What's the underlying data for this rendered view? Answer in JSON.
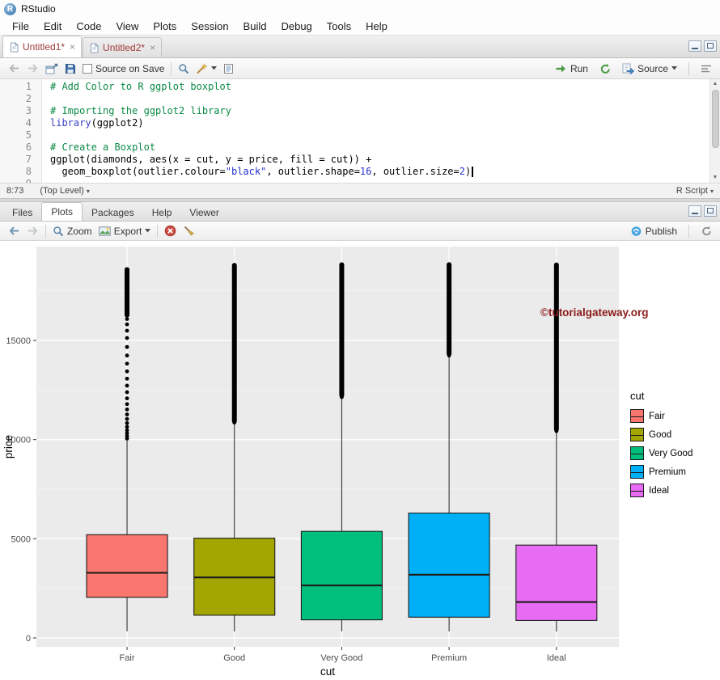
{
  "window": {
    "title": "RStudio",
    "logo_letter": "R"
  },
  "menubar": {
    "items": [
      "File",
      "Edit",
      "Code",
      "View",
      "Plots",
      "Session",
      "Build",
      "Debug",
      "Tools",
      "Help"
    ]
  },
  "source_pane": {
    "tabs": [
      {
        "label": "Untitled1*",
        "close": "×"
      },
      {
        "label": "Untitled2*",
        "close": "×"
      }
    ],
    "toolbar": {
      "source_on_save": "Source on Save",
      "run": "Run",
      "source": "Source"
    },
    "editor": {
      "lines": [
        {
          "n": "1",
          "tokens": [
            {
              "s": "c",
              "t": "# Add Color to R ggplot boxplot"
            }
          ]
        },
        {
          "n": "2",
          "tokens": []
        },
        {
          "n": "3",
          "tokens": [
            {
              "s": "c",
              "t": "# Importing the ggplot2 library"
            }
          ]
        },
        {
          "n": "4",
          "tokens": [
            {
              "s": "k",
              "t": "library"
            },
            {
              "s": "p",
              "t": "(ggplot2)"
            }
          ]
        },
        {
          "n": "5",
          "tokens": []
        },
        {
          "n": "6",
          "tokens": [
            {
              "s": "c",
              "t": "# Create a Boxplot"
            }
          ]
        },
        {
          "n": "7",
          "tokens": [
            {
              "s": "p",
              "t": "ggplot(diamonds, aes(x = cut, y = price, fill = cut)) +"
            }
          ]
        },
        {
          "n": "8",
          "cursor": true,
          "tokens": [
            {
              "s": "p",
              "t": "  geom_boxplot(outlier.colour="
            },
            {
              "s": "s",
              "t": "\"black\""
            },
            {
              "s": "p",
              "t": ", outlier.shape="
            },
            {
              "s": "n",
              "t": "16"
            },
            {
              "s": "p",
              "t": ", outlier.size="
            },
            {
              "s": "n",
              "t": "2"
            },
            {
              "s": "p",
              "t": ")"
            }
          ]
        },
        {
          "n": "9",
          "tokens": []
        }
      ]
    },
    "status": {
      "position": "8:73",
      "scope": "(Top Level)",
      "file_type": "R Script"
    }
  },
  "plots_pane": {
    "tabs": [
      "Files",
      "Plots",
      "Packages",
      "Help",
      "Viewer"
    ],
    "active_tab": "Plots",
    "toolbar": {
      "zoom": "Zoom",
      "export": "Export",
      "publish": "Publish"
    }
  },
  "chart_data": {
    "type": "boxplot",
    "title": "",
    "xlabel": "cut",
    "ylabel": "price",
    "categories": [
      "Fair",
      "Good",
      "Very Good",
      "Premium",
      "Ideal"
    ],
    "colors": [
      "#F8766D",
      "#A3A500",
      "#00BF7D",
      "#00B0F6",
      "#E76BF3"
    ],
    "y_ticks": [
      0,
      5000,
      10000,
      15000
    ],
    "y_minor_ticks": [
      2500,
      7500,
      12500,
      17500
    ],
    "ylim": [
      -450,
      19730
    ],
    "grid": true,
    "panel_color": "#EBEBEB",
    "legend": {
      "title": "cut",
      "position": "right"
    },
    "watermark": {
      "text": "©tutorialgateway.org",
      "color": "#8B1A1A"
    },
    "series": [
      {
        "name": "Fair",
        "whisker_low": 337,
        "q1": 2050,
        "median": 3282,
        "q3": 5205,
        "whisker_high": 9950,
        "outlier_dots": [
          10050,
          10180,
          10320,
          10470,
          10640,
          10830,
          11040,
          11270,
          11520,
          11790,
          12080,
          12390,
          12720,
          13070,
          13440,
          13830,
          14240,
          14670,
          15120,
          15490,
          15810,
          16080
        ],
        "outlier_bar": [
          16280,
          18574
        ]
      },
      {
        "name": "Good",
        "whisker_low": 327,
        "q1": 1145,
        "median": 3050,
        "q3": 5028,
        "whisker_high": 10790,
        "outlier_dots": [
          10860
        ],
        "outlier_bar": [
          10940,
          18788
        ]
      },
      {
        "name": "Very Good",
        "whisker_low": 336,
        "q1": 912,
        "median": 2648,
        "q3": 5373,
        "whisker_high": 12060,
        "outlier_dots": [
          12140
        ],
        "outlier_bar": [
          12230,
          18818
        ]
      },
      {
        "name": "Premium",
        "whisker_low": 326,
        "q1": 1046,
        "median": 3185,
        "q3": 6296,
        "whisker_high": 14170,
        "outlier_dots": [
          14240
        ],
        "outlier_bar": [
          14330,
          18823
        ]
      },
      {
        "name": "Ideal",
        "whisker_low": 326,
        "q1": 878,
        "median": 1810,
        "q3": 4679,
        "whisker_high": 10370,
        "outlier_dots": [
          10430
        ],
        "outlier_bar": [
          10520,
          18806
        ]
      }
    ]
  }
}
